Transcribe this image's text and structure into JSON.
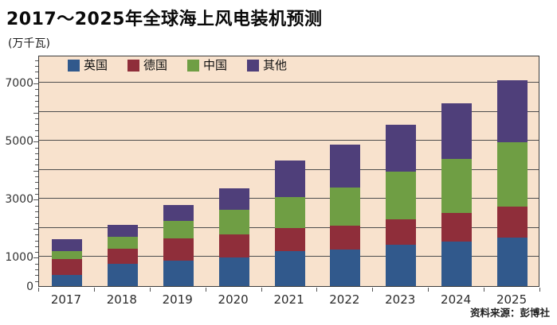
{
  "header": {
    "title": "2017～2025年全球海上风电装机预测",
    "unit_label": "(万千瓦)"
  },
  "footer": {
    "source": "资料来源：彭博社"
  },
  "colors": {
    "plot_background": "#f8e2cd",
    "gridline": "#4d4d4d",
    "axis": "#3c3c3c",
    "uk_blue": "#31598c",
    "germany_red": "#8f2e3a",
    "china_green": "#6f9e44",
    "others_purple": "#4f3f7a"
  },
  "chart_data": {
    "type": "bar",
    "stacked": true,
    "title": "2017～2025年全球海上风电装机预测",
    "ylabel": "万千瓦",
    "xlabel": "",
    "categories": [
      "2017",
      "2018",
      "2019",
      "2020",
      "2021",
      "2022",
      "2023",
      "2024",
      "2025"
    ],
    "series": [
      {
        "name": "英国",
        "key": "uk",
        "color": "#31598c",
        "values": [
          390,
          770,
          890,
          990,
          1210,
          1260,
          1410,
          1530,
          1670
        ]
      },
      {
        "name": "德国",
        "key": "germany",
        "color": "#8f2e3a",
        "values": [
          550,
          530,
          760,
          790,
          800,
          820,
          890,
          980,
          1070
        ]
      },
      {
        "name": "中国",
        "key": "china",
        "color": "#6f9e44",
        "values": [
          270,
          390,
          590,
          860,
          1050,
          1300,
          1640,
          1870,
          2210
        ]
      },
      {
        "name": "其他",
        "key": "others",
        "color": "#4f3f7a",
        "values": [
          410,
          410,
          550,
          730,
          1250,
          1500,
          1620,
          1920,
          2140
        ]
      }
    ],
    "totals": [
      1620,
      2100,
      2790,
      3370,
      4310,
      4880,
      5560,
      6300,
      7090
    ],
    "ylim": [
      0,
      7950
    ],
    "y_labeled_ticks": [
      0,
      1000,
      3000,
      5000,
      7000
    ],
    "gridline_step": 1000,
    "minor_tick_step": 200,
    "grid": true,
    "legend_position": "top-inside"
  }
}
